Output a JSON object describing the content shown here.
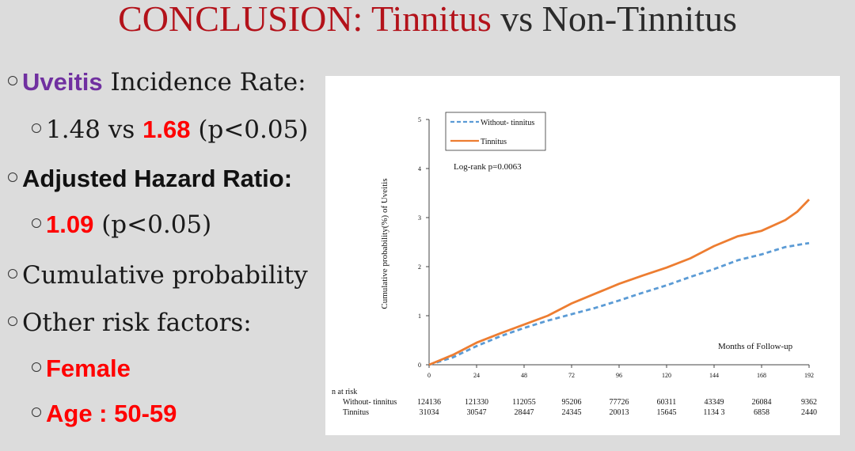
{
  "slide": {
    "title_part1": "CONCLUSION: Tinnitus",
    "title_part2": "vs Non-Tinnitus"
  },
  "bullets": {
    "uveitis_word": "Uveitis",
    "incidence_rest": "Incidence Rate:",
    "rate_plain": "1.48 vs",
    "rate_highlight": "1.68",
    "rate_p": "(p<0.05)",
    "ahr_label": "Adjusted Hazard Ratio:",
    "ahr_value": "1.09",
    "ahr_p": "(p<0.05)",
    "cumulative": "Cumulative probability",
    "other_risk": "Other risk factors:",
    "female": "Female",
    "age": "Age : 50-59"
  },
  "colors": {
    "title_red": "#b3121a",
    "purple": "#7030a0",
    "highlight_red": "#ff0000",
    "without_series": "#5b9bd5",
    "tinnitus_series": "#ed7d31"
  },
  "chart_data": {
    "type": "line",
    "ylabel": "Cumulative probability(%) of Uveitis",
    "xlabel": "Months of Follow-up",
    "annotation": "Log-rank p=0.0063",
    "xlim": [
      0,
      192
    ],
    "ylim": [
      0,
      5
    ],
    "x_ticks": [
      "0",
      "24",
      "48",
      "72",
      "96",
      "120",
      "144",
      "168",
      "192"
    ],
    "y_ticks": [
      "0",
      "1",
      "2",
      "3",
      "4",
      "5"
    ],
    "legend_position": "top-left",
    "series": [
      {
        "name": "Without- tinnitus",
        "style": "dashed",
        "x": [
          0,
          12,
          24,
          36,
          48,
          60,
          72,
          84,
          96,
          108,
          120,
          132,
          144,
          156,
          168,
          180,
          192
        ],
        "y": [
          0,
          0.15,
          0.38,
          0.58,
          0.75,
          0.9,
          1.03,
          1.16,
          1.31,
          1.47,
          1.62,
          1.79,
          1.95,
          2.13,
          2.25,
          2.4,
          2.48
        ]
      },
      {
        "name": "Tinnitus",
        "style": "solid",
        "x": [
          0,
          12,
          24,
          36,
          48,
          60,
          72,
          84,
          96,
          108,
          120,
          132,
          144,
          156,
          168,
          180,
          186,
          192
        ],
        "y": [
          0,
          0.2,
          0.45,
          0.64,
          0.82,
          1.0,
          1.25,
          1.45,
          1.65,
          1.82,
          1.98,
          2.17,
          2.42,
          2.62,
          2.73,
          2.95,
          3.12,
          3.37
        ]
      }
    ],
    "risk_table": {
      "header": "n at risk",
      "rows": [
        {
          "label": "Without- tinnitus",
          "values": [
            "124136",
            "121330",
            "112055",
            "95206",
            "77726",
            "60311",
            "43349",
            "26084",
            "9362"
          ]
        },
        {
          "label": "Tinnitus",
          "values": [
            "31034",
            "30547",
            "28447",
            "24345",
            "20013",
            "15645",
            "1134 3",
            "6858",
            "2440"
          ]
        }
      ]
    }
  }
}
